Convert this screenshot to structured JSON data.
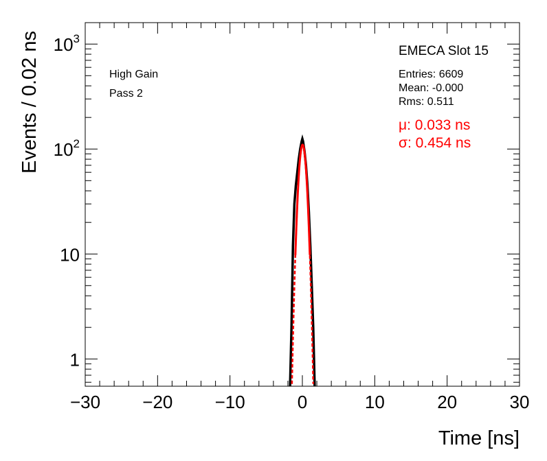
{
  "chart_data": {
    "type": "histogram",
    "title": "",
    "xlabel": "Time [ns]",
    "ylabel": "Events / 0.02 ns",
    "xlim": [
      -30,
      30
    ],
    "ylim": [
      0.55,
      1600
    ],
    "yscale": "log",
    "grid": false,
    "x_ticks": [
      "−30",
      "−20",
      "−10",
      "0",
      "10",
      "20",
      "30"
    ],
    "x_tick_values": [
      -30,
      -20,
      -10,
      0,
      10,
      20,
      30
    ],
    "y_ticks": [
      {
        "value": 1,
        "base": "1",
        "exp": ""
      },
      {
        "value": 10,
        "base": "10",
        "exp": ""
      },
      {
        "value": 100,
        "base": "10",
        "exp": "2"
      },
      {
        "value": 1000,
        "base": "10",
        "exp": "3"
      }
    ],
    "annotations": {
      "gain": "High Gain",
      "pass": "Pass 2",
      "slot": "EMECA Slot 15",
      "entries": "Entries: 6609",
      "mean": "Mean: -0.000",
      "rms": "Rms: 0.511",
      "mu": "μ: 0.033 ns",
      "sigma": "σ: 0.454 ns"
    },
    "series": [
      {
        "kind": "histogram",
        "color": "#000000",
        "x": [
          -1.7,
          -1.5,
          -1.3,
          -1.1,
          -0.9,
          -0.7,
          -0.5,
          -0.3,
          -0.1,
          0.0,
          0.1,
          0.3,
          0.5,
          0.7,
          0.9,
          1.1,
          1.3,
          1.5,
          1.7
        ],
        "y": [
          0.55,
          2,
          12,
          30,
          45,
          60,
          80,
          100,
          118,
          125,
          118,
          95,
          70,
          45,
          25,
          12,
          5,
          2,
          0.55
        ]
      },
      {
        "kind": "gaussian-fit",
        "color": "#ff0000",
        "amplitude": 110,
        "mu": 0.033,
        "sigma": 0.454
      }
    ],
    "colors": {
      "fit": "#ff0000",
      "histogram": "#000000",
      "fit_text": "#ff0000"
    }
  }
}
